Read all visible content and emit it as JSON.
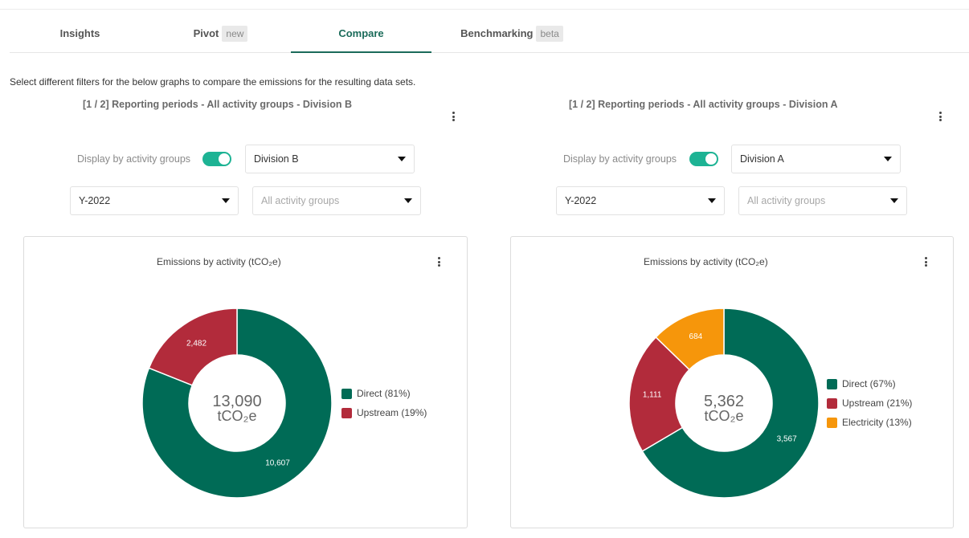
{
  "tabs": [
    {
      "label": "Insights",
      "badge": ""
    },
    {
      "label": "Pivot",
      "badge": "new"
    },
    {
      "label": "Compare",
      "badge": ""
    },
    {
      "label": "Benchmarking",
      "badge": "beta"
    }
  ],
  "active_tab": "Compare",
  "intro": "Select different filters for the below graphs to compare the emissions for the resulting data sets.",
  "colors": {
    "accent": "#1b6b5a",
    "toggle": "#1db394",
    "direct": "#006b56",
    "upstream": "#b22b3b",
    "electricity": "#f6960b"
  },
  "panels": [
    {
      "title": "[1 / 2] Reporting periods - All activity groups - Division B",
      "toggle_label": "Display by activity groups",
      "toggle_on": true,
      "division": "Division B",
      "period": "Y-2022",
      "activity_placeholder": "All activity groups",
      "chart_title": "Emissions by activity (tCO₂e)",
      "total_value": "13,090",
      "total_unit": "tCO₂e",
      "legend": [
        "Direct (81%)",
        "Upstream (19%)"
      ],
      "slice_labels": [
        "10,607",
        "2,482"
      ]
    },
    {
      "title": "[1 / 2] Reporting periods - All activity groups - Division A",
      "toggle_label": "Display by activity groups",
      "toggle_on": true,
      "division": "Division A",
      "period": "Y-2022",
      "activity_placeholder": "All activity groups",
      "chart_title": "Emissions by activity (tCO₂e)",
      "total_value": "5,362",
      "total_unit": "tCO₂e",
      "legend": [
        "Direct (67%)",
        "Upstream (21%)",
        "Electricity (13%)"
      ],
      "slice_labels": [
        "3,567",
        "1,111",
        "684"
      ]
    }
  ],
  "chart_data": [
    {
      "type": "pie",
      "title": "Emissions by activity (tCO₂e)",
      "categories": [
        "Direct",
        "Upstream"
      ],
      "values": [
        10607,
        2482
      ],
      "colors": [
        "#006b56",
        "#b22b3b"
      ],
      "legend": "right"
    },
    {
      "type": "pie",
      "title": "Emissions by activity (tCO₂e)",
      "categories": [
        "Direct",
        "Upstream",
        "Electricity"
      ],
      "values": [
        3567,
        1111,
        684
      ],
      "colors": [
        "#006b56",
        "#b22b3b",
        "#f6960b"
      ],
      "legend": "right"
    }
  ]
}
